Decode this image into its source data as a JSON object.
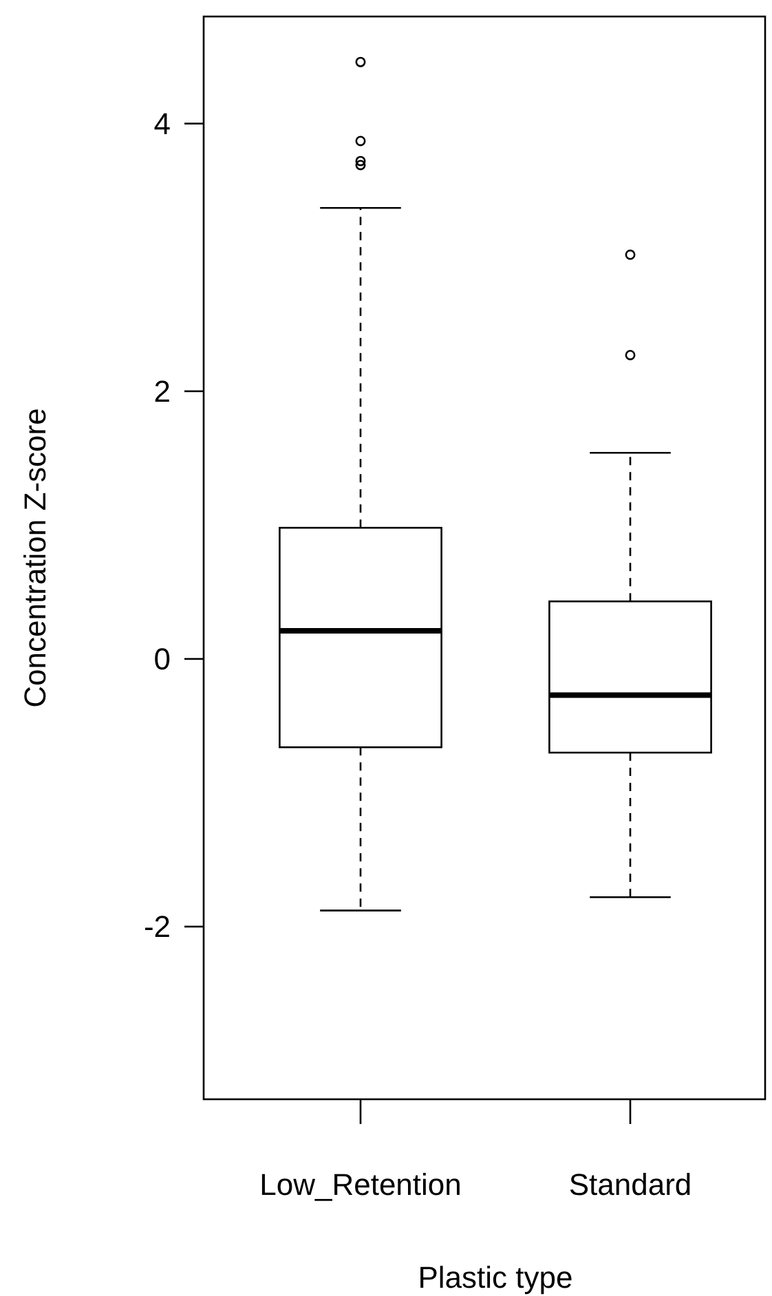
{
  "chart_data": {
    "type": "box",
    "xlabel": "Plastic type",
    "ylabel": "Concentration Z-score",
    "categories": [
      "Low_Retention",
      "Standard"
    ],
    "boxes": [
      {
        "low": -1.88,
        "q1": -0.66,
        "median": 0.21,
        "q3": 0.98,
        "high": 3.37,
        "outliers": [
          4.46,
          3.87,
          3.72,
          3.69
        ]
      },
      {
        "low": -1.78,
        "q1": -0.7,
        "median": -0.27,
        "q3": 0.43,
        "high": 1.54,
        "outliers": [
          3.02,
          2.27
        ]
      }
    ],
    "ylim": [
      -3.29,
      4.8
    ],
    "yticks": [
      -2,
      0,
      2,
      4
    ],
    "grid": false,
    "marker": "circle"
  }
}
